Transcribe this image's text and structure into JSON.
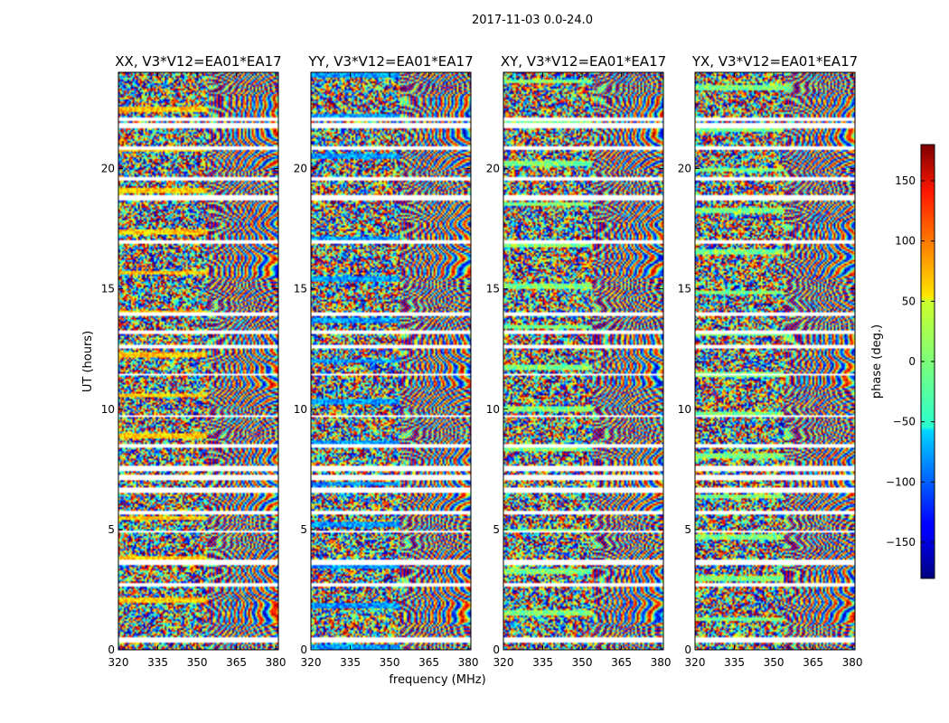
{
  "figure_title": "2017-11-03 0.0-24.0",
  "chart_data": {
    "type": "heatmap",
    "title": "2017-11-03 0.0-24.0",
    "xlabel": "frequency (MHz)",
    "ylabel": "UT (hours)",
    "xlim": [
      320,
      381
    ],
    "ylim": [
      0,
      24
    ],
    "xticks": [
      320,
      335,
      350,
      365,
      380
    ],
    "yticks": [
      0,
      5,
      10,
      15,
      20
    ],
    "colormap": "jet",
    "panels": [
      {
        "id": "xx",
        "title": "XX, V3*V12=EA01*EA17",
        "yellow_bias": 0.7
      },
      {
        "id": "yy",
        "title": "YY, V3*V12=EA01*EA17",
        "yellow_bias": -0.9
      },
      {
        "id": "xy",
        "title": "XY, V3*V12=EA01*EA17",
        "yellow_bias": 0.0
      },
      {
        "id": "yx",
        "title": "YX, V3*V12=EA01*EA17",
        "yellow_bias": 0.0
      }
    ],
    "gaps_hours": [
      [
        0.35,
        0.55
      ],
      [
        2.7,
        2.85
      ],
      [
        3.6,
        3.8
      ],
      [
        4.9,
        5.0
      ],
      [
        5.7,
        5.85
      ],
      [
        6.6,
        6.8
      ],
      [
        7.05,
        7.35
      ],
      [
        7.5,
        7.65
      ],
      [
        8.4,
        8.55
      ],
      [
        9.7,
        9.8
      ],
      [
        11.4,
        11.5
      ],
      [
        12.55,
        12.7
      ],
      [
        13.2,
        13.35
      ],
      [
        13.9,
        14.05
      ],
      [
        16.9,
        17.05
      ],
      [
        18.75,
        18.9
      ],
      [
        19.55,
        19.65
      ],
      [
        20.85,
        20.95
      ],
      [
        21.7,
        21.9
      ],
      [
        22.0,
        22.15
      ]
    ],
    "colorbar": {
      "label": "phase (deg.)",
      "range": [
        -180,
        180
      ],
      "ticks": [
        -150,
        -100,
        -50,
        0,
        50,
        100,
        150
      ],
      "tick_labels": [
        "−150",
        "−100",
        "−50",
        "0",
        "50",
        "100",
        "150"
      ]
    }
  }
}
